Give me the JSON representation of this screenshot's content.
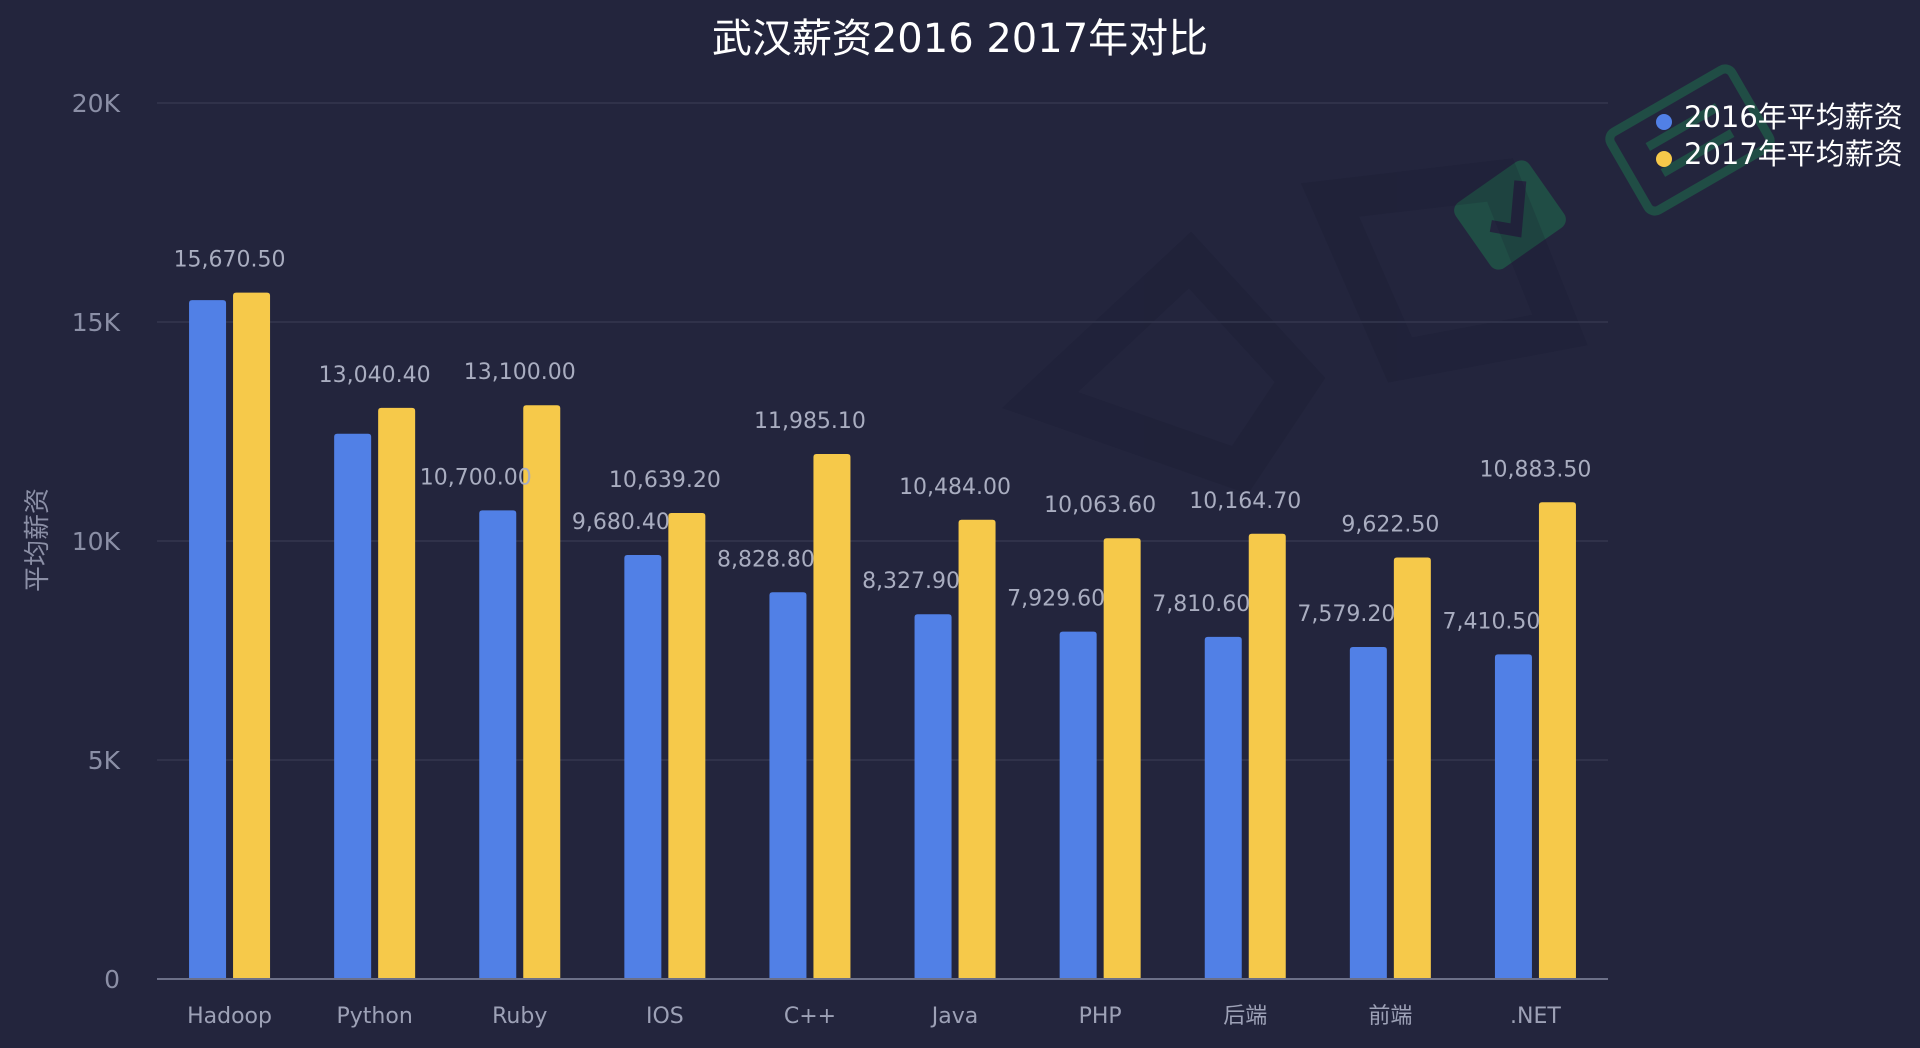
{
  "colors": {
    "background": "#23253d",
    "s2016": "#5180e6",
    "s2017": "#f6c94a",
    "watermark": "#1f6e4d"
  },
  "chart_data": {
    "type": "bar",
    "title": "武汉薪资2016 2017年对比",
    "xlabel": "",
    "ylabel": "平均薪资",
    "ylim": [
      0,
      20000
    ],
    "yticks": [
      0,
      5000,
      10000,
      15000,
      20000
    ],
    "ytick_labels": [
      "0",
      "5K",
      "10K",
      "15K",
      "20K"
    ],
    "grid": true,
    "legend_position": "top-right",
    "categories": [
      "Hadoop",
      "Python",
      "Ruby",
      "IOS",
      "C++",
      "Java",
      "PHP",
      "后端",
      "前端",
      ".NET"
    ],
    "series": [
      {
        "name": "2016年平均薪资",
        "values": [
          15500,
          12450,
          10700,
          9680.4,
          8828.8,
          8327.9,
          7929.6,
          7810.6,
          7579.2,
          7410.5
        ],
        "labels": [
          "",
          "",
          "10,700.00",
          "9,680.40",
          "8,828.80",
          "8,327.90",
          "7,929.60",
          "7,810.60",
          "7,579.20",
          "7,410.50"
        ]
      },
      {
        "name": "2017年平均薪资",
        "values": [
          15670.5,
          13040.4,
          13100,
          10639.2,
          11985.1,
          10484,
          10063.6,
          10164.7,
          9622.5,
          10883.5
        ],
        "labels": [
          "15,670.50",
          "13,040.40",
          "13,100.00",
          "10,639.20",
          "11,985.10",
          "10,484.00",
          "10,063.60",
          "10,164.70",
          "9,622.50",
          "10,883.50"
        ]
      }
    ]
  }
}
